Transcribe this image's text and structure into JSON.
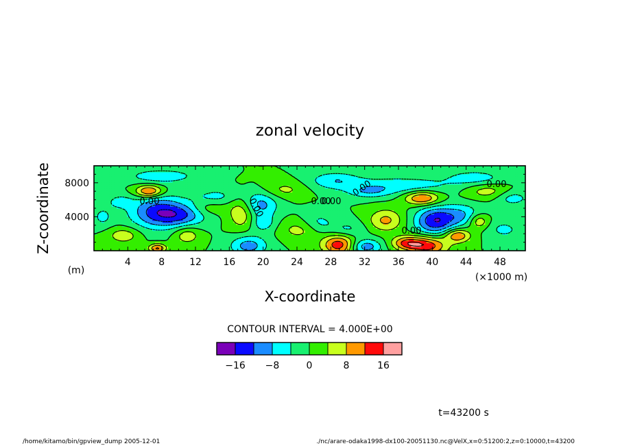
{
  "chart_data": {
    "type": "heatmap",
    "title": "zonal velocity",
    "xlabel": "X-coordinate",
    "ylabel": "Z-coordinate",
    "x_unit_note": "(×1000 m)",
    "y_unit_note": "(m)",
    "xlim": [
      0,
      51
    ],
    "ylim": [
      0,
      10000
    ],
    "x_ticks": [
      "4",
      "8",
      "12",
      "16",
      "20",
      "24",
      "28",
      "32",
      "36",
      "40",
      "44",
      "48"
    ],
    "y_ticks": [
      "4000",
      "8000"
    ],
    "contour_interval_label": "CONTOUR INTERVAL = 4.000E+00",
    "contour_labels": [
      "0.00",
      "0.00",
      "0.00",
      "0.00",
      "0.00",
      "0.00",
      "0.00"
    ],
    "colorbar": {
      "levels": [
        -20,
        -16,
        -12,
        -8,
        -4,
        0,
        4,
        8,
        12,
        16,
        20
      ],
      "colors": [
        "#7a00b8",
        "#0a0aff",
        "#1a8cff",
        "#00ffff",
        "#18f070",
        "#33ee00",
        "#c8ff1e",
        "#ff9900",
        "#ff0a0a",
        "#ffa0a0"
      ],
      "tick_labels": [
        "−16",
        "−8",
        "0",
        "8",
        "16"
      ],
      "tick_values": [
        -16,
        -8,
        0,
        8,
        16
      ]
    },
    "time_label": "t=43200 s",
    "grid": false
  },
  "footer": {
    "left": "/home/kitamo/bin/gpview_dump  2005-12-01",
    "right": "./nc/arare-odaka1998-dx100-20051130.nc@VelX,x=0:51200:2,z=0:10000,t=43200"
  },
  "features": [
    {
      "x": 7.5,
      "z": 4600,
      "w": 3.2,
      "h": 1900,
      "v": -13
    },
    {
      "x": 10.5,
      "z": 4200,
      "w": 3.0,
      "h": 1300,
      "v": -9
    },
    {
      "x": 19.5,
      "z": 5400,
      "w": 2.2,
      "h": 1500,
      "v": -10
    },
    {
      "x": 18.3,
      "z": 600,
      "w": 2.2,
      "h": 1200,
      "v": -10
    },
    {
      "x": 29.0,
      "z": 700,
      "w": 2.0,
      "h": 1200,
      "v": 15
    },
    {
      "x": 32.0,
      "z": 500,
      "w": 2.0,
      "h": 900,
      "v": -11
    },
    {
      "x": 36.0,
      "z": 7700,
      "w": 6.0,
      "h": 1000,
      "v": -7
    },
    {
      "x": 40.3,
      "z": 3500,
      "w": 2.3,
      "h": 1600,
      "v": -15
    },
    {
      "x": 43.5,
      "z": 4200,
      "w": 2.5,
      "h": 1300,
      "v": -8
    },
    {
      "x": 39.5,
      "z": 600,
      "w": 2.3,
      "h": 1100,
      "v": 14
    },
    {
      "x": 37.0,
      "z": 900,
      "w": 1.8,
      "h": 800,
      "v": 12
    },
    {
      "x": 43.0,
      "z": 1800,
      "w": 1.5,
      "h": 800,
      "v": 12
    },
    {
      "x": 38.8,
      "z": 6200,
      "w": 2.0,
      "h": 800,
      "v": 13
    },
    {
      "x": 6.5,
      "z": 7000,
      "w": 1.6,
      "h": 700,
      "v": 14
    },
    {
      "x": 8.0,
      "z": 8800,
      "w": 4.0,
      "h": 800,
      "v": -7
    },
    {
      "x": 28.5,
      "z": 8300,
      "w": 3.0,
      "h": 1000,
      "v": -7
    },
    {
      "x": 32.5,
      "z": 6900,
      "w": 2.5,
      "h": 700,
      "v": -6
    },
    {
      "x": 45.0,
      "z": 8600,
      "w": 3.5,
      "h": 900,
      "v": -6
    },
    {
      "x": 49.5,
      "z": 6200,
      "w": 2.0,
      "h": 900,
      "v": -6
    },
    {
      "x": 17.5,
      "z": 4600,
      "w": 1.6,
      "h": 1900,
      "v": 9
    },
    {
      "x": 34.5,
      "z": 3600,
      "w": 2.0,
      "h": 1300,
      "v": 9
    },
    {
      "x": 45.5,
      "z": 3500,
      "w": 1.2,
      "h": 900,
      "v": 9
    },
    {
      "x": 11.0,
      "z": 1800,
      "w": 1.5,
      "h": 1000,
      "v": 7
    },
    {
      "x": 3.5,
      "z": 1800,
      "w": 1.8,
      "h": 900,
      "v": 7
    },
    {
      "x": 14.5,
      "z": 6400,
      "w": 3.0,
      "h": 1000,
      "v": -5
    },
    {
      "x": 7.5,
      "z": 300,
      "w": 1.0,
      "h": 500,
      "v": 13
    },
    {
      "x": 1.0,
      "z": 4000,
      "w": 1.2,
      "h": 1200,
      "v": -5
    },
    {
      "x": 26.5,
      "z": 3200,
      "w": 2.0,
      "h": 1300,
      "v": -6
    },
    {
      "x": 30.0,
      "z": 2500,
      "w": 2.0,
      "h": 1000,
      "v": -5
    },
    {
      "x": 22.5,
      "z": 7200,
      "w": 2.5,
      "h": 1000,
      "v": 5
    },
    {
      "x": 46.5,
      "z": 7000,
      "w": 2.5,
      "h": 900,
      "v": 6
    },
    {
      "x": 24.5,
      "z": 2500,
      "w": 2.5,
      "h": 1200,
      "v": 6
    },
    {
      "x": 20.0,
      "z": 3200,
      "w": 1.5,
      "h": 1000,
      "v": -6
    },
    {
      "x": 3.0,
      "z": 5800,
      "w": 1.5,
      "h": 800,
      "v": -5
    },
    {
      "x": 13.5,
      "z": 5000,
      "w": 2.0,
      "h": 900,
      "v": 4
    },
    {
      "x": 48.5,
      "z": 2500,
      "w": 2.0,
      "h": 1100,
      "v": -5
    }
  ]
}
